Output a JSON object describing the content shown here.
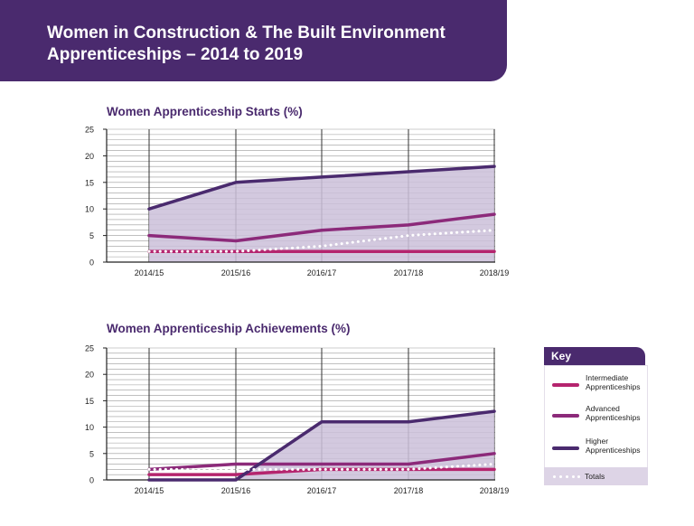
{
  "header": {
    "title": "Women in Construction & The Built Environment Apprenticeships – 2014 to 2019"
  },
  "colors": {
    "brand": "#4a2a6e",
    "intermediate": "#b5246e",
    "advanced": "#8c2a7a",
    "higher": "#4a2a6e",
    "totals": "#ffffff",
    "fill": "#cbc0d9"
  },
  "chart_data": [
    {
      "type": "line",
      "title": "Women Apprenticeship Starts (%)",
      "categories": [
        "2014/15",
        "2015/16",
        "2016/17",
        "2017/18",
        "2018/19"
      ],
      "ylim": [
        0,
        25
      ],
      "yticks": [
        0,
        5,
        10,
        15,
        20,
        25
      ],
      "series": [
        {
          "name": "Intermediate Apprenticeships",
          "values": [
            2,
            2,
            2,
            2,
            2
          ]
        },
        {
          "name": "Advanced Apprenticeships",
          "values": [
            5,
            4,
            6,
            7,
            9
          ]
        },
        {
          "name": "Higher Apprenticeships",
          "values": [
            10,
            15,
            16,
            17,
            18
          ]
        },
        {
          "name": "Totals",
          "values": [
            2,
            2,
            3,
            5,
            6
          ]
        }
      ]
    },
    {
      "type": "line",
      "title": "Women Apprenticeship Achievements (%)",
      "categories": [
        "2014/15",
        "2015/16",
        "2016/17",
        "2017/18",
        "2018/19"
      ],
      "ylim": [
        0,
        25
      ],
      "yticks": [
        0,
        5,
        10,
        15,
        20,
        25
      ],
      "series": [
        {
          "name": "Intermediate Apprenticeships",
          "values": [
            1,
            1,
            2,
            2,
            2
          ]
        },
        {
          "name": "Advanced Apprenticeships",
          "values": [
            2,
            3,
            3,
            3,
            5
          ]
        },
        {
          "name": "Higher Apprenticeships",
          "values": [
            0,
            0,
            11,
            11,
            13
          ]
        },
        {
          "name": "Totals",
          "values": [
            2,
            2,
            2,
            2,
            3
          ]
        }
      ]
    }
  ],
  "key": {
    "title": "Key",
    "items": [
      {
        "label": "Intermediate Apprenticeships"
      },
      {
        "label": "Advanced Apprenticeships"
      },
      {
        "label": "Higher Apprenticeships"
      },
      {
        "label": "Totals"
      }
    ]
  }
}
